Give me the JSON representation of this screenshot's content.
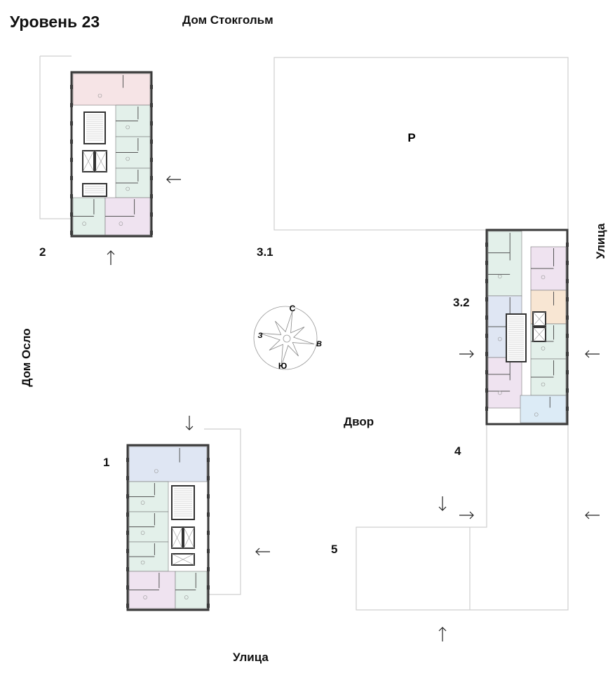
{
  "title": "Уровень 23",
  "labels": {
    "house_stockholm": "Дом Стокгольм",
    "house_oslo": "Дом Осло",
    "street_right": "Улица",
    "street_bottom": "Улица",
    "yard": "Двор",
    "parking": "P"
  },
  "blocks": [
    "1",
    "2",
    "3.1",
    "3.2",
    "4",
    "5"
  ],
  "compass": {
    "north": "С",
    "south": "Ю",
    "west": "З",
    "east": "В"
  },
  "colors": {
    "walls": "#3a3a3a",
    "site_outline": "#cfcfcf",
    "apt_pink": "#f6e4e6",
    "apt_green": "#e3f0ea",
    "apt_blue": "#dfe6f3",
    "apt_lilac": "#efe3f0",
    "apt_orange": "#f8e6d3",
    "apt_lightblue": "#dcebf6"
  }
}
